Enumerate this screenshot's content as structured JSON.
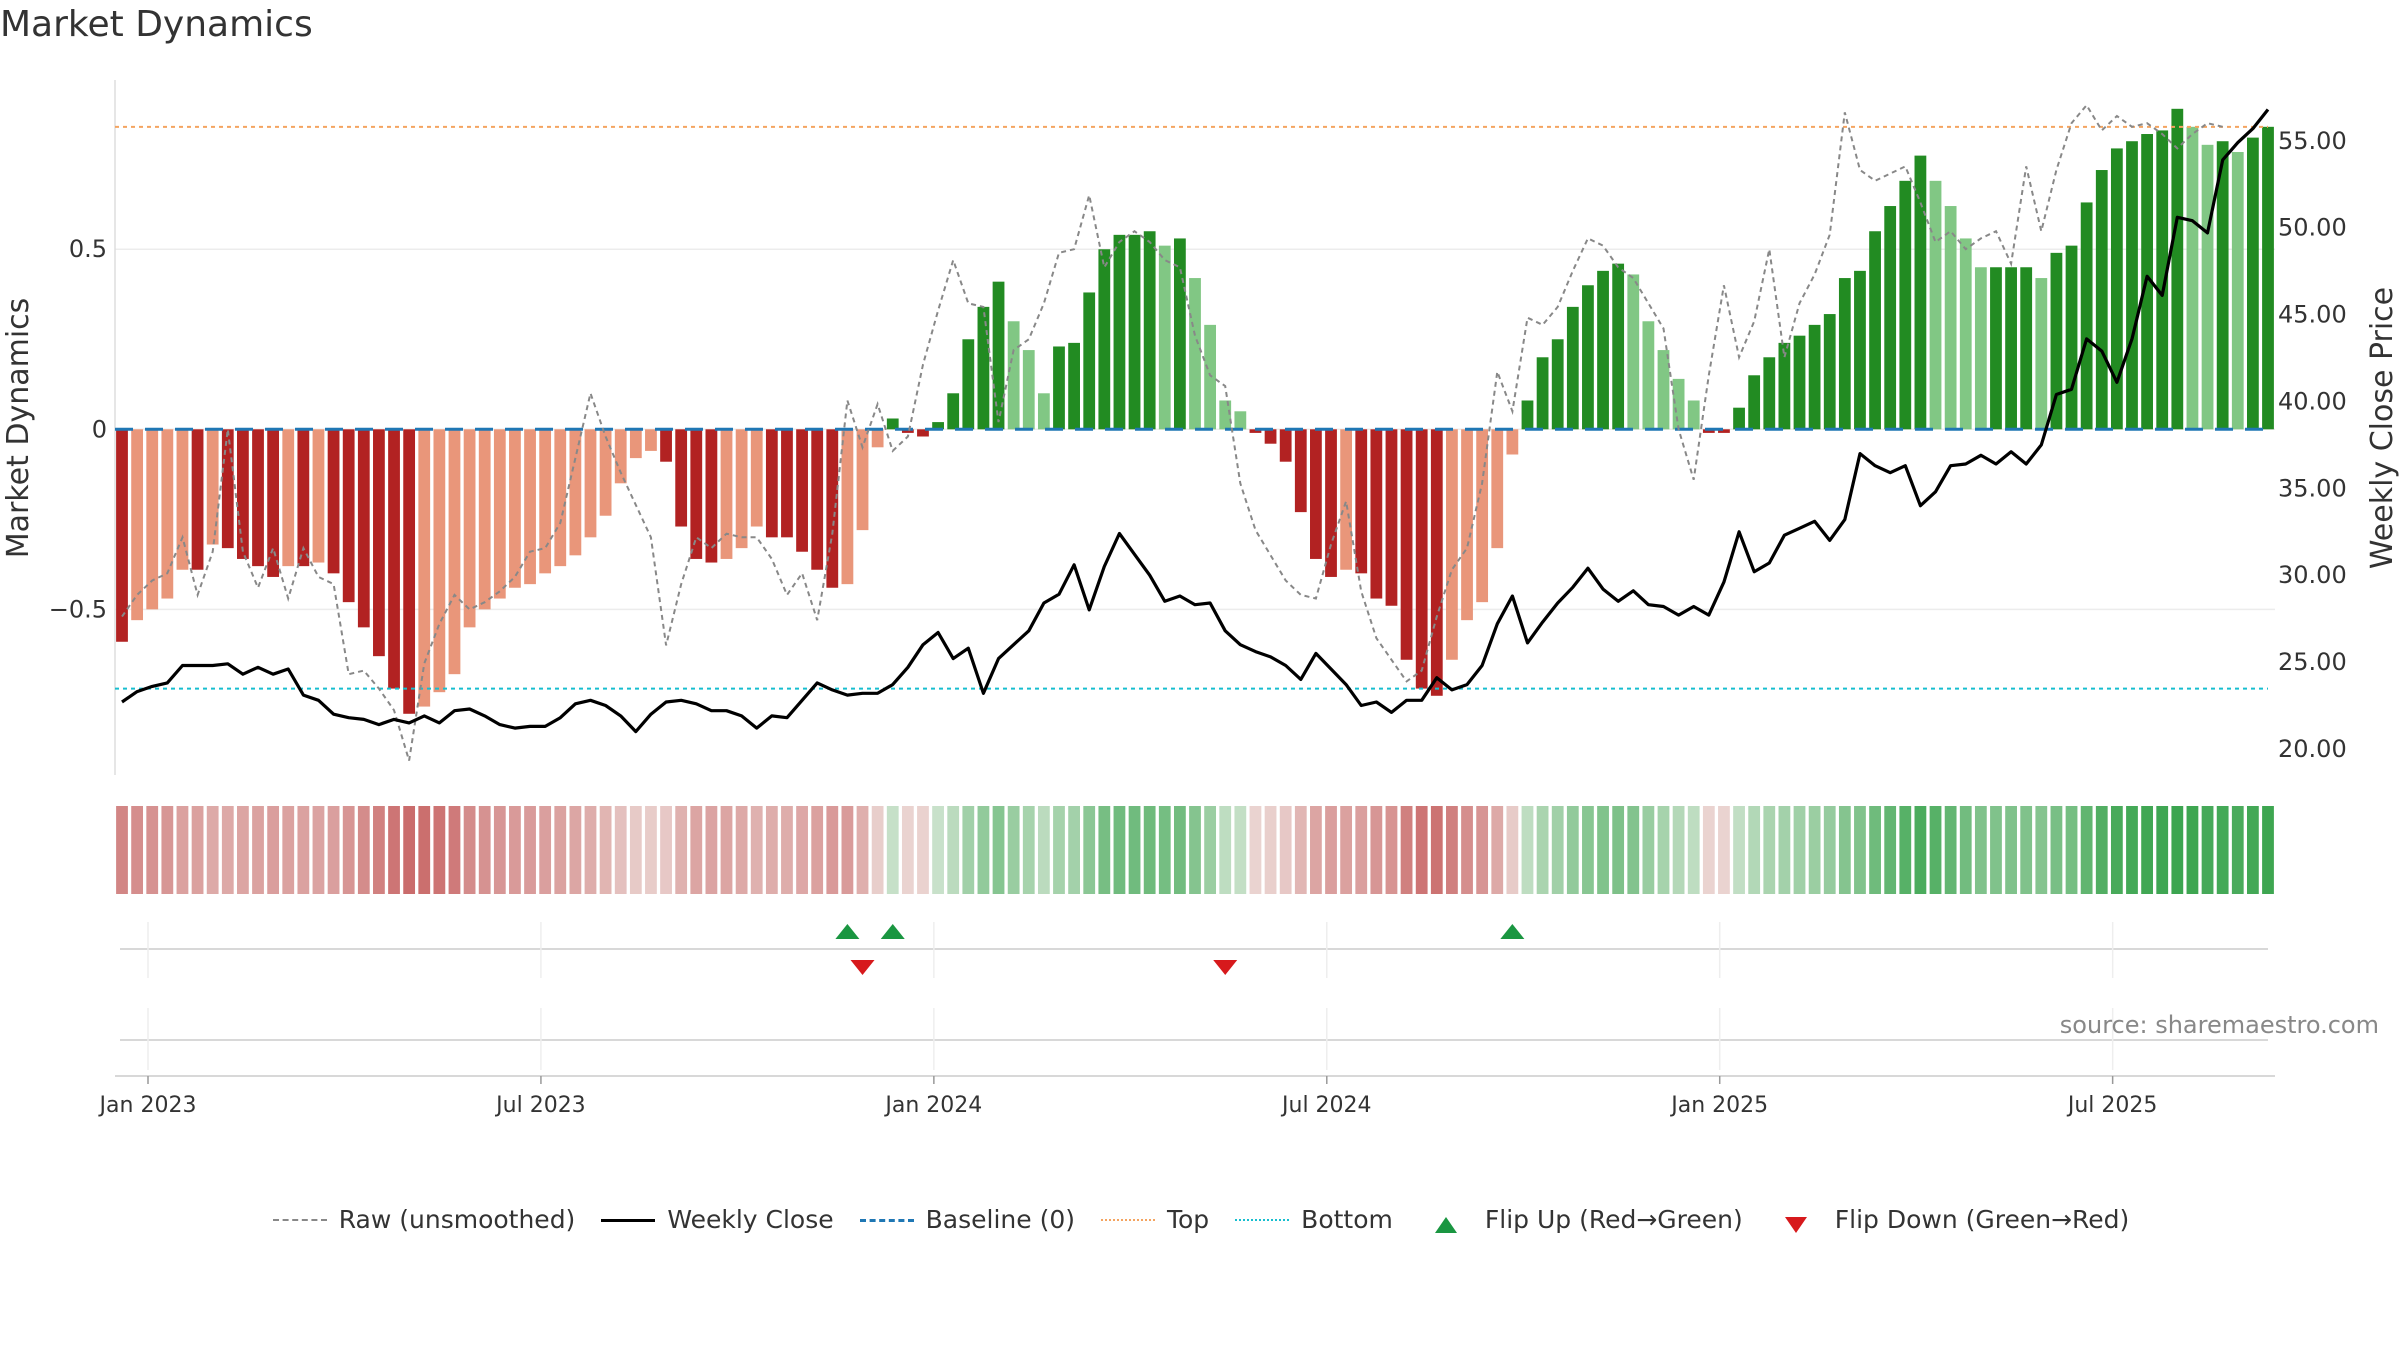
{
  "title": "Market Dynamics",
  "source": "source: sharemaestro.com",
  "colors": {
    "green_dark": "#228b22",
    "green_light": "#81c784",
    "red_dark": "#b22222",
    "red_light": "#e9967a",
    "raw": "#888888",
    "close": "#000000",
    "baseline": "#1f77b4",
    "top": "#f4a460",
    "bottom": "#17becf",
    "flip_up": "#1a9641",
    "flip_down": "#d7191c"
  },
  "legend": [
    {
      "key": "raw",
      "label": "Raw (unsmoothed)"
    },
    {
      "key": "close",
      "label": "Weekly Close"
    },
    {
      "key": "baseline",
      "label": "Baseline (0)"
    },
    {
      "key": "top",
      "label": "Top"
    },
    {
      "key": "bottom",
      "label": "Bottom"
    },
    {
      "key": "flip_up",
      "label": "Flip Up (Red→Green)"
    },
    {
      "key": "flip_down",
      "label": "Flip Down (Green→Red)"
    }
  ],
  "chart_data": {
    "type": "bar",
    "title": "Market Dynamics",
    "ylabel_left": "Market Dynamics",
    "ylabel_right": "Weekly Close Price",
    "ylim_left": [
      -0.96,
      0.97
    ],
    "ylim_right": [
      18.5,
      58.5
    ],
    "left_ticks": [
      "−0.5",
      "0",
      "0.5"
    ],
    "left_tick_values": [
      -0.5,
      0,
      0.5
    ],
    "right_ticks": [
      "20.00",
      "25.00",
      "30.00",
      "35.00",
      "40.00",
      "45.00",
      "50.00",
      "55.00"
    ],
    "right_tick_values": [
      20,
      25,
      30,
      35,
      40,
      45,
      50,
      55
    ],
    "x_ticks": [
      "Jan 2023",
      "Jul 2023",
      "Jan 2024",
      "Jul 2024",
      "Jan 2025",
      "Jul 2025"
    ],
    "x_tick_weeks": [
      0,
      26,
      52,
      78,
      104,
      130
    ],
    "start_label": "2022-12-26",
    "top_level": 0.84,
    "bottom_level": -0.72,
    "baseline": 0,
    "flip_up_weeks": [
      48,
      51,
      92
    ],
    "flip_down_weeks": [
      49,
      73
    ],
    "series": [
      {
        "name": "Market Dynamics",
        "values": [
          -0.59,
          -0.53,
          -0.5,
          -0.47,
          -0.39,
          -0.39,
          -0.32,
          -0.33,
          -0.36,
          -0.38,
          -0.41,
          -0.38,
          -0.38,
          -0.37,
          -0.4,
          -0.48,
          -0.55,
          -0.63,
          -0.72,
          -0.79,
          -0.77,
          -0.73,
          -0.68,
          -0.55,
          -0.5,
          -0.47,
          -0.44,
          -0.43,
          -0.4,
          -0.38,
          -0.35,
          -0.3,
          -0.24,
          -0.15,
          -0.08,
          -0.06,
          -0.09,
          -0.27,
          -0.36,
          -0.37,
          -0.36,
          -0.33,
          -0.27,
          -0.3,
          -0.3,
          -0.34,
          -0.39,
          -0.44,
          -0.43,
          -0.28,
          -0.05,
          0.03,
          -0.01,
          -0.02,
          0.02,
          0.1,
          0.25,
          0.34,
          0.41,
          0.3,
          0.22,
          0.1,
          0.23,
          0.24,
          0.38,
          0.5,
          0.54,
          0.54,
          0.55,
          0.51,
          0.53,
          0.42,
          0.29,
          0.08,
          0.05,
          -0.01,
          -0.04,
          -0.09,
          -0.23,
          -0.36,
          -0.41,
          -0.39,
          -0.4,
          -0.47,
          -0.49,
          -0.64,
          -0.72,
          -0.74,
          -0.64,
          -0.53,
          -0.48,
          -0.33,
          -0.07,
          0.08,
          0.2,
          0.25,
          0.34,
          0.4,
          0.44,
          0.46,
          0.43,
          0.3,
          0.22,
          0.14,
          0.08,
          -0.01,
          -0.01,
          0.06,
          0.15,
          0.2,
          0.24,
          0.26,
          0.29,
          0.32,
          0.42,
          0.44,
          0.55,
          0.62,
          0.69,
          0.76,
          0.69,
          0.62,
          0.53,
          0.45,
          0.45,
          0.45,
          0.45,
          0.42,
          0.49,
          0.51,
          0.63,
          0.72,
          0.78,
          0.8,
          0.82,
          0.83,
          0.89,
          0.84,
          0.79,
          0.8,
          0.77,
          0.81,
          0.84
        ]
      },
      {
        "name": "Raw (unsmoothed)",
        "values": [
          -0.52,
          -0.46,
          -0.42,
          -0.4,
          -0.3,
          -0.46,
          -0.34,
          0.0,
          -0.34,
          -0.44,
          -0.33,
          -0.47,
          -0.33,
          -0.41,
          -0.43,
          -0.68,
          -0.67,
          -0.72,
          -0.78,
          -0.92,
          -0.65,
          -0.54,
          -0.46,
          -0.5,
          -0.48,
          -0.45,
          -0.41,
          -0.34,
          -0.33,
          -0.26,
          -0.08,
          0.1,
          -0.02,
          -0.12,
          -0.21,
          -0.3,
          -0.6,
          -0.43,
          -0.3,
          -0.33,
          -0.29,
          -0.3,
          -0.3,
          -0.36,
          -0.46,
          -0.4,
          -0.53,
          -0.29,
          0.08,
          -0.05,
          0.07,
          -0.06,
          -0.02,
          0.18,
          0.33,
          0.47,
          0.35,
          0.34,
          0.02,
          0.22,
          0.25,
          0.35,
          0.49,
          0.5,
          0.65,
          0.45,
          0.52,
          0.55,
          0.52,
          0.47,
          0.45,
          0.26,
          0.15,
          0.12,
          -0.15,
          -0.28,
          -0.35,
          -0.42,
          -0.46,
          -0.47,
          -0.32,
          -0.2,
          -0.45,
          -0.58,
          -0.64,
          -0.7,
          -0.67,
          -0.52,
          -0.39,
          -0.33,
          -0.15,
          0.16,
          0.05,
          0.31,
          0.29,
          0.34,
          0.44,
          0.53,
          0.51,
          0.45,
          0.42,
          0.35,
          0.28,
          0.0,
          -0.14,
          0.15,
          0.4,
          0.2,
          0.3,
          0.5,
          0.2,
          0.35,
          0.43,
          0.54,
          0.88,
          0.72,
          0.69,
          0.71,
          0.73,
          0.63,
          0.52,
          0.55,
          0.5,
          0.53,
          0.55,
          0.46,
          0.73,
          0.55,
          0.72,
          0.85,
          0.9,
          0.83,
          0.87,
          0.84,
          0.85,
          0.82,
          0.78,
          0.82,
          0.85,
          0.84
        ]
      },
      {
        "name": "Weekly Close",
        "values": [
          22.7,
          23.3,
          23.6,
          23.8,
          24.8,
          24.8,
          24.8,
          24.9,
          24.3,
          24.7,
          24.3,
          24.6,
          23.1,
          22.8,
          22.0,
          21.8,
          21.7,
          21.4,
          21.7,
          21.5,
          21.9,
          21.5,
          22.2,
          22.3,
          21.9,
          21.4,
          21.2,
          21.3,
          21.3,
          21.8,
          22.6,
          22.8,
          22.5,
          21.9,
          21.0,
          22.0,
          22.7,
          22.8,
          22.6,
          22.2,
          22.2,
          21.9,
          21.2,
          21.9,
          21.8,
          22.8,
          23.8,
          23.4,
          23.1,
          23.2,
          23.2,
          23.7,
          24.7,
          26.0,
          26.7,
          25.2,
          25.8,
          23.2,
          25.2,
          26.0,
          26.8,
          28.4,
          28.9,
          30.6,
          28.0,
          30.5,
          32.4,
          31.2,
          30.0,
          28.5,
          28.8,
          28.3,
          28.4,
          26.8,
          26.0,
          25.6,
          25.3,
          24.8,
          24.0,
          25.5,
          24.6,
          23.7,
          22.5,
          22.7,
          22.1,
          22.8,
          22.8,
          24.1,
          23.4,
          23.7,
          24.8,
          27.2,
          28.8,
          26.1,
          27.3,
          28.4,
          29.3,
          30.4,
          29.2,
          28.5,
          29.1,
          28.3,
          28.2,
          27.7,
          28.2,
          27.7,
          29.6,
          32.5,
          30.2,
          30.7,
          32.3,
          32.7,
          33.1,
          32.0,
          33.2,
          37.0,
          36.3,
          35.9,
          36.3,
          34.0,
          34.8,
          36.3,
          36.4,
          36.9,
          36.4,
          37.1,
          36.4,
          37.5,
          40.4,
          40.7,
          43.6,
          42.9,
          41.1,
          43.6,
          47.2,
          46.1,
          50.6,
          50.4,
          49.7,
          53.9,
          54.9,
          55.7,
          56.8
        ]
      }
    ]
  }
}
